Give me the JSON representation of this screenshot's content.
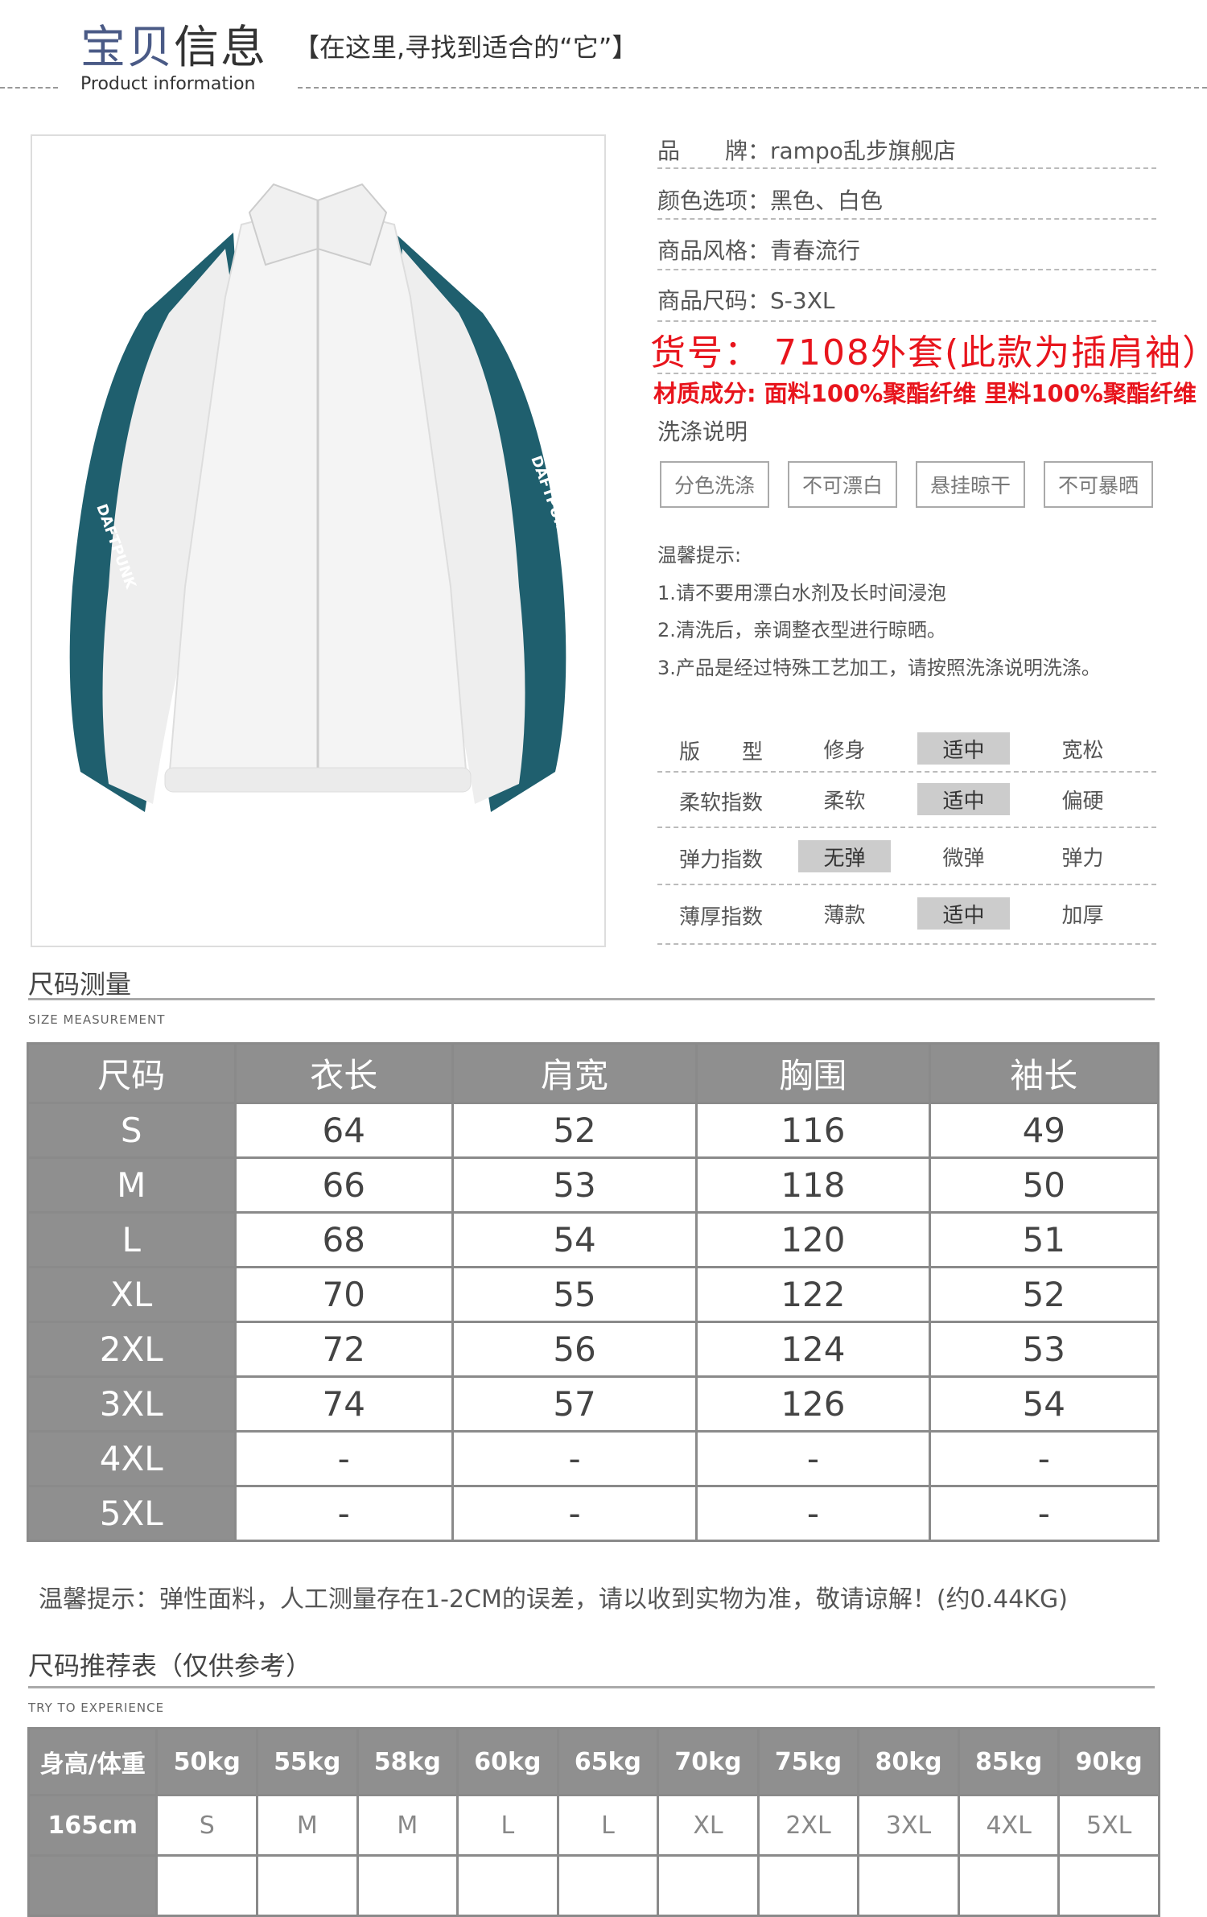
{
  "header": {
    "title_part1": "宝贝",
    "title_part2": "信息",
    "subtitle": "【在这里,寻找到适合的“它”】",
    "title_en": "Product information"
  },
  "product_image": {
    "alt_text_on_garment": "DAFTPUNK",
    "colors": {
      "body": "#f2f2f2",
      "stripe": "#1f5f6e"
    }
  },
  "info": {
    "rows": [
      {
        "label": "品　　牌：",
        "value": "rampo乱步旗舰店"
      },
      {
        "label": "颜色选项：",
        "value": "黑色、白色"
      },
      {
        "label": "商品风格：",
        "value": "青春流行"
      },
      {
        "label": "商品尺码：",
        "value": "S-3XL"
      }
    ],
    "item_no": "货号：  7108外套(此款为插肩袖）",
    "material": "材质成分: 面料100%聚酯纤维 里料100%聚酯纤维",
    "wash_title": "洗涤说明",
    "wash_items": [
      "分色洗涤",
      "不可漂白",
      "悬挂晾干",
      "不可暴晒"
    ],
    "tips_title": "温馨提示:",
    "tips": [
      "1.请不要用漂白水剂及长时间浸泡",
      "2.清洗后，亲调整衣型进行晾晒。",
      "3.产品是经过特殊工艺加工，请按照洗涤说明洗涤。"
    ],
    "highlight_color": "#cccccc",
    "attributes": [
      {
        "label": "版　　型",
        "options": [
          "修身",
          "适中",
          "宽松"
        ],
        "selected": "适中"
      },
      {
        "label": "柔软指数",
        "options": [
          "柔软",
          "适中",
          "偏硬"
        ],
        "selected": "适中"
      },
      {
        "label": "弹力指数",
        "options": [
          "无弹",
          "微弹",
          "弹力"
        ],
        "selected": "无弹"
      },
      {
        "label": "薄厚指数",
        "options": [
          "薄款",
          "适中",
          "加厚"
        ],
        "selected": "适中"
      }
    ]
  },
  "size_section": {
    "title": "尺码测量",
    "title_en": "SIZE MEASUREMENT",
    "headers": [
      "尺码",
      "衣长",
      "肩宽",
      "胸围",
      "袖长"
    ],
    "rows": [
      [
        "S",
        "64",
        "52",
        "116",
        "49"
      ],
      [
        "M",
        "66",
        "53",
        "118",
        "50"
      ],
      [
        "L",
        "68",
        "54",
        "120",
        "51"
      ],
      [
        "XL",
        "70",
        "55",
        "122",
        "52"
      ],
      [
        "2XL",
        "72",
        "56",
        "124",
        "53"
      ],
      [
        "3XL",
        "74",
        "57",
        "126",
        "54"
      ],
      [
        "4XL",
        "-",
        "-",
        "-",
        "-"
      ],
      [
        "5XL",
        "-",
        "-",
        "-",
        "-"
      ]
    ],
    "note": "温馨提示：弹性面料，人工测量存在1-2CM的误差，请以收到实物为准，敬请谅解！(约0.44KG)"
  },
  "recommend_section": {
    "title": "尺码推荐表（仅供参考）",
    "title_en": "TRY TO EXPERIENCE",
    "headers": [
      "身高/体重",
      "50kg",
      "55kg",
      "58kg",
      "60kg",
      "65kg",
      "70kg",
      "75kg",
      "80kg",
      "85kg",
      "90kg"
    ],
    "rows": [
      [
        "165cm",
        "S",
        "M",
        "M",
        "L",
        "L",
        "XL",
        "2XL",
        "3XL",
        "4XL",
        "5XL"
      ]
    ]
  }
}
